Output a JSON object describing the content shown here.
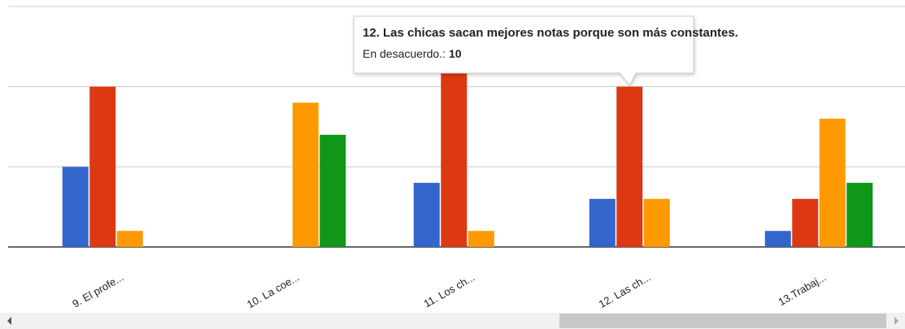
{
  "chart_data": {
    "type": "bar",
    "categories": [
      "9. El profe...",
      "10. La coe...",
      "11. Los ch...",
      "12. Las ch...",
      "13.Trabaj..."
    ],
    "series": [
      {
        "color": "#3366cc",
        "values": [
          5,
          0,
          4,
          3,
          1
        ]
      },
      {
        "name": "En desacuerdo.",
        "color": "#dc3912",
        "values": [
          10,
          0,
          11,
          10,
          3
        ]
      },
      {
        "color": "#ff9900",
        "values": [
          1,
          9,
          1,
          3,
          8
        ]
      },
      {
        "color": "#109618",
        "values": [
          0,
          7,
          0,
          0,
          4
        ]
      }
    ],
    "ylim": [
      0,
      15
    ],
    "yticks": [
      0,
      5,
      10,
      15
    ],
    "grid": true,
    "tooltip": {
      "title": "12. Las chicas sacan mejores notas porque son más constantes.",
      "label": "En desacuerdo.:",
      "series": 1,
      "category": 3
    }
  }
}
